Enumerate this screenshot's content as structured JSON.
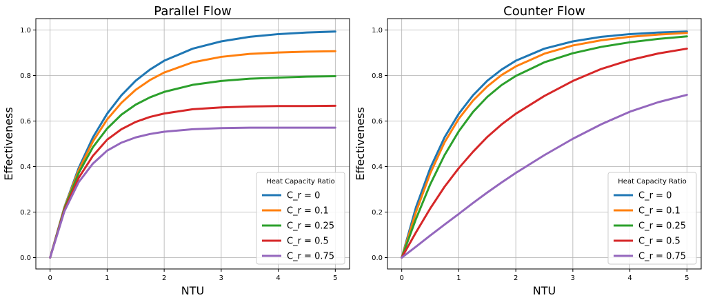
{
  "chart_data": [
    {
      "type": "line",
      "title": "Parallel Flow",
      "xlabel": "NTU",
      "ylabel": "Effectiveness",
      "xlim": [
        -0.25,
        5.25
      ],
      "ylim": [
        -0.05,
        1.05
      ],
      "xticks": [
        "0",
        "1",
        "2",
        "3",
        "4",
        "5"
      ],
      "yticks": [
        "0.0",
        "0.2",
        "0.4",
        "0.6",
        "0.8",
        "1.0"
      ],
      "grid": true,
      "legend": {
        "title": "Heat Capacity Ratio",
        "placement": "lower-right"
      },
      "x": [
        0,
        0.25,
        0.5,
        0.75,
        1,
        1.25,
        1.5,
        1.75,
        2,
        2.5,
        3,
        3.5,
        4,
        4.5,
        5
      ],
      "series": [
        {
          "name": "C_r = 0",
          "color": "#1f77b4",
          "values": [
            0,
            0.221,
            0.393,
            0.528,
            0.632,
            0.713,
            0.777,
            0.826,
            0.865,
            0.918,
            0.95,
            0.97,
            0.982,
            0.989,
            0.993
          ]
        },
        {
          "name": "C_r = 0.1",
          "color": "#ff7f0e",
          "values": [
            0,
            0.219,
            0.384,
            0.51,
            0.607,
            0.68,
            0.737,
            0.78,
            0.813,
            0.858,
            0.882,
            0.895,
            0.901,
            0.905,
            0.907
          ]
        },
        {
          "name": "C_r = 0.25",
          "color": "#2ca02c",
          "values": [
            0,
            0.215,
            0.371,
            0.485,
            0.567,
            0.628,
            0.672,
            0.704,
            0.728,
            0.759,
            0.776,
            0.786,
            0.791,
            0.795,
            0.797
          ]
        },
        {
          "name": "C_r = 0.5",
          "color": "#d62728",
          "values": [
            0,
            0.209,
            0.35,
            0.447,
            0.518,
            0.564,
            0.596,
            0.618,
            0.633,
            0.652,
            0.66,
            0.664,
            0.666,
            0.666,
            0.667
          ]
        },
        {
          "name": "C_r = 0.75",
          "color": "#9467bd",
          "values": [
            0,
            0.203,
            0.331,
            0.413,
            0.47,
            0.505,
            0.528,
            0.543,
            0.553,
            0.564,
            0.569,
            0.571,
            0.571,
            0.571,
            0.571
          ]
        }
      ]
    },
    {
      "type": "line",
      "title": "Counter Flow",
      "xlabel": "NTU",
      "ylabel": "Effectiveness",
      "xlim": [
        -0.25,
        5.25
      ],
      "ylim": [
        -0.05,
        1.05
      ],
      "xticks": [
        "0",
        "1",
        "2",
        "3",
        "4",
        "5"
      ],
      "yticks": [
        "0.0",
        "0.2",
        "0.4",
        "0.6",
        "0.8",
        "1.0"
      ],
      "grid": true,
      "legend": {
        "title": "Heat Capacity Ratio",
        "placement": "lower-right"
      },
      "x": [
        0,
        0.25,
        0.5,
        0.75,
        1,
        1.25,
        1.5,
        1.75,
        2,
        2.5,
        3,
        3.5,
        4,
        4.5,
        5
      ],
      "series": [
        {
          "name": "C_r = 0",
          "color": "#1f77b4",
          "values": [
            0,
            0.221,
            0.393,
            0.528,
            0.632,
            0.713,
            0.777,
            0.826,
            0.865,
            0.918,
            0.95,
            0.97,
            0.982,
            0.989,
            0.993
          ]
        },
        {
          "name": "C_r = 0.1",
          "color": "#ff7f0e",
          "values": [
            0,
            0.2,
            0.37,
            0.506,
            0.61,
            0.69,
            0.752,
            0.802,
            0.84,
            0.896,
            0.932,
            0.955,
            0.97,
            0.98,
            0.987
          ]
        },
        {
          "name": "C_r = 0.25",
          "color": "#2ca02c",
          "values": [
            0,
            0.17,
            0.322,
            0.45,
            0.555,
            0.64,
            0.706,
            0.758,
            0.798,
            0.858,
            0.898,
            0.926,
            0.946,
            0.961,
            0.972
          ]
        },
        {
          "name": "C_r = 0.5",
          "color": "#d62728",
          "values": [
            0,
            0.111,
            0.216,
            0.311,
            0.393,
            0.465,
            0.53,
            0.585,
            0.632,
            0.71,
            0.776,
            0.829,
            0.868,
            0.897,
            0.918
          ]
        },
        {
          "name": "C_r = 0.75",
          "color": "#9467bd",
          "values": [
            0,
            0.048,
            0.097,
            0.145,
            0.192,
            0.24,
            0.286,
            0.33,
            0.372,
            0.45,
            0.522,
            0.586,
            0.641,
            0.683,
            0.715
          ]
        }
      ]
    }
  ]
}
